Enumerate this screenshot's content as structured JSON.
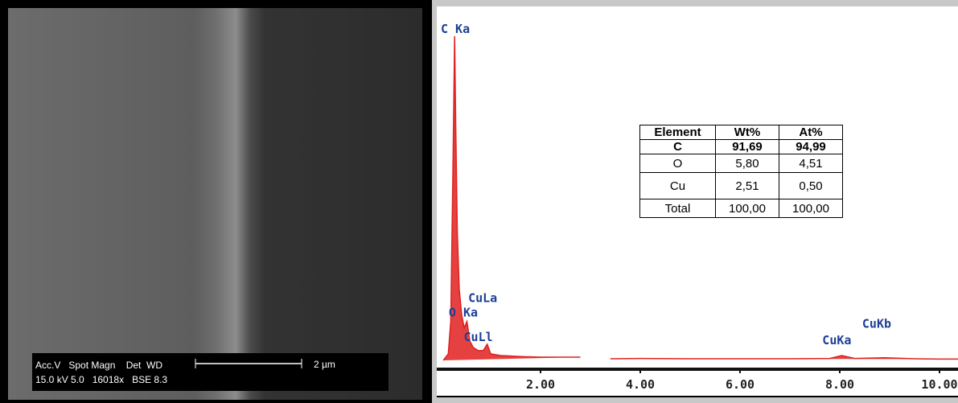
{
  "sem": {
    "info_line1": "Acc.V   Spot Magn    Det  WD",
    "info_line2": "15.0 kV 5.0   16018x   BSE 8.3",
    "scale_bar": "2 µm"
  },
  "chart_data": {
    "type": "line",
    "color": "#e02020",
    "x": [
      0.05,
      0.15,
      0.2,
      0.24,
      0.277,
      0.3,
      0.33,
      0.37,
      0.42,
      0.47,
      0.525,
      0.58,
      0.65,
      0.75,
      0.85,
      0.93,
      1.0,
      1.2,
      1.6,
      2.0,
      2.4,
      2.8,
      3.1,
      3.4,
      4.0,
      5.0,
      6.0,
      7.0,
      7.8,
      8.04,
      8.3,
      8.9,
      9.5,
      10.0,
      10.4
    ],
    "values": [
      0,
      2,
      12,
      55,
      100,
      72,
      40,
      22,
      14,
      10,
      12,
      6,
      4,
      3,
      3,
      5,
      2,
      1.5,
      1.2,
      1,
      1,
      1,
      null,
      0.5,
      0.6,
      0.5,
      0.5,
      0.5,
      0.6,
      1.5,
      0.6,
      0.8,
      0.5,
      0.4,
      0.4
    ],
    "xlim": [
      0,
      10.4
    ],
    "ylim": [
      0,
      100
    ],
    "xticks": [
      {
        "value": 2,
        "label": "2.00"
      },
      {
        "value": 4,
        "label": "4.00"
      },
      {
        "value": 6,
        "label": "6.00"
      },
      {
        "value": 8,
        "label": "8.00"
      },
      {
        "value": 10,
        "label": "10.00"
      }
    ],
    "annotations": [
      {
        "text": "C Ka",
        "x": 0.0,
        "y": 100
      },
      {
        "text": "CuLa",
        "x": 0.55,
        "y": 17
      },
      {
        "text": "O Ka",
        "x": 0.16,
        "y": 12.5
      },
      {
        "text": "CuLl",
        "x": 0.46,
        "y": 5
      },
      {
        "text": "CuKa",
        "x": 7.65,
        "y": 4
      },
      {
        "text": "CuKb",
        "x": 8.45,
        "y": 9
      }
    ]
  },
  "table": {
    "header": [
      "Element",
      "Wt%",
      "At%"
    ],
    "rows": [
      [
        "C",
        "91,69",
        "94,99"
      ],
      [
        "O",
        "5,80",
        "4,51"
      ],
      [
        "Cu",
        "2,51",
        "0,50"
      ],
      [
        "Total",
        "100,00",
        "100,00"
      ]
    ]
  }
}
